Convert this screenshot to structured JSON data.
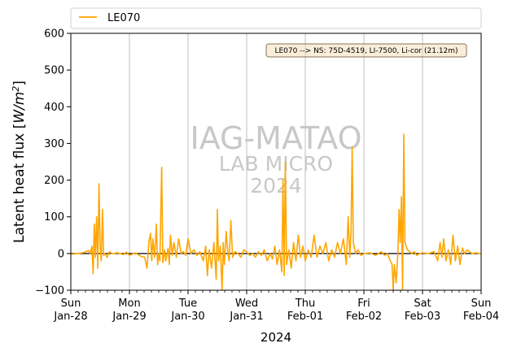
{
  "chart_data": {
    "type": "line",
    "title": "",
    "xlabel": "2024",
    "ylabel": "Latent heat flux [W/m²]",
    "ylabel_main": "Latent heat flux [",
    "ylabel_unit_w": "W/m",
    "ylabel_unit_exp": "2",
    "ylabel_close": "]",
    "ylim": [
      -100,
      600
    ],
    "y_ticks": [
      -100,
      0,
      100,
      200,
      300,
      400,
      500,
      600
    ],
    "x_range_days": [
      0,
      7
    ],
    "x_ticks": [
      {
        "day": 0,
        "line1": "Sun",
        "line2": "Jan-28"
      },
      {
        "day": 1,
        "line1": "Mon",
        "line2": "Jan-29"
      },
      {
        "day": 2,
        "line1": "Tue",
        "line2": "Jan-30"
      },
      {
        "day": 3,
        "line1": "Wed",
        "line2": "Jan-31"
      },
      {
        "day": 4,
        "line1": "Thu",
        "line2": "Feb-01"
      },
      {
        "day": 5,
        "line1": "Fri",
        "line2": "Feb-02"
      },
      {
        "day": 6,
        "line1": "Sat",
        "line2": "Feb-03"
      },
      {
        "day": 7,
        "line1": "Sun",
        "line2": "Feb-04"
      }
    ],
    "grid": "vertical-major",
    "zero_line": true,
    "legend_placement": "top",
    "annotation": "LE070 --> NS: 75D-4519, LI-7500, Li-cor (21.12m)",
    "watermark": {
      "line1": "IAG-MATAO",
      "line2": "LAB MICRO",
      "line3": "2024"
    },
    "series": [
      {
        "name": "LE070",
        "color": "#ffa500",
        "points": [
          [
            0.0,
            -2
          ],
          [
            0.1,
            0
          ],
          [
            0.2,
            2
          ],
          [
            0.26,
            5
          ],
          [
            0.3,
            8
          ],
          [
            0.33,
            0
          ],
          [
            0.36,
            20
          ],
          [
            0.38,
            -55
          ],
          [
            0.4,
            80
          ],
          [
            0.42,
            -10
          ],
          [
            0.44,
            100
          ],
          [
            0.46,
            -40
          ],
          [
            0.48,
            190
          ],
          [
            0.5,
            20
          ],
          [
            0.52,
            -20
          ],
          [
            0.54,
            120
          ],
          [
            0.56,
            -5
          ],
          [
            0.58,
            0
          ],
          [
            0.62,
            -10
          ],
          [
            0.66,
            5
          ],
          [
            0.7,
            0
          ],
          [
            0.8,
            2
          ],
          [
            0.9,
            -3
          ],
          [
            0.95,
            4
          ],
          [
            1.0,
            -5
          ],
          [
            1.1,
            2
          ],
          [
            1.2,
            -8
          ],
          [
            1.26,
            -10
          ],
          [
            1.3,
            -40
          ],
          [
            1.33,
            30
          ],
          [
            1.36,
            55
          ],
          [
            1.38,
            -20
          ],
          [
            1.4,
            40
          ],
          [
            1.43,
            -10
          ],
          [
            1.46,
            80
          ],
          [
            1.48,
            -30
          ],
          [
            1.5,
            0
          ],
          [
            1.52,
            -20
          ],
          [
            1.55,
            235
          ],
          [
            1.57,
            -25
          ],
          [
            1.6,
            10
          ],
          [
            1.62,
            -20
          ],
          [
            1.66,
            15
          ],
          [
            1.68,
            -30
          ],
          [
            1.7,
            50
          ],
          [
            1.73,
            -5
          ],
          [
            1.76,
            30
          ],
          [
            1.8,
            -10
          ],
          [
            1.84,
            40
          ],
          [
            1.88,
            0
          ],
          [
            1.92,
            5
          ],
          [
            1.96,
            -5
          ],
          [
            2.0,
            40
          ],
          [
            2.05,
            0
          ],
          [
            2.1,
            10
          ],
          [
            2.15,
            -5
          ],
          [
            2.2,
            5
          ],
          [
            2.26,
            -20
          ],
          [
            2.3,
            20
          ],
          [
            2.33,
            -60
          ],
          [
            2.36,
            10
          ],
          [
            2.4,
            -40
          ],
          [
            2.44,
            30
          ],
          [
            2.48,
            -70
          ],
          [
            2.5,
            120
          ],
          [
            2.52,
            -20
          ],
          [
            2.55,
            20
          ],
          [
            2.58,
            -100
          ],
          [
            2.6,
            30
          ],
          [
            2.62,
            -30
          ],
          [
            2.65,
            60
          ],
          [
            2.68,
            0
          ],
          [
            2.7,
            -20
          ],
          [
            2.73,
            90
          ],
          [
            2.76,
            -10
          ],
          [
            2.8,
            5
          ],
          [
            2.85,
            0
          ],
          [
            2.9,
            -10
          ],
          [
            2.95,
            10
          ],
          [
            3.0,
            5
          ],
          [
            3.05,
            -5
          ],
          [
            3.1,
            0
          ],
          [
            3.15,
            -10
          ],
          [
            3.2,
            5
          ],
          [
            3.25,
            -5
          ],
          [
            3.3,
            10
          ],
          [
            3.35,
            -20
          ],
          [
            3.4,
            0
          ],
          [
            3.44,
            -15
          ],
          [
            3.48,
            20
          ],
          [
            3.52,
            -30
          ],
          [
            3.56,
            10
          ],
          [
            3.6,
            -50
          ],
          [
            3.62,
            200
          ],
          [
            3.64,
            -60
          ],
          [
            3.66,
            250
          ],
          [
            3.68,
            -30
          ],
          [
            3.72,
            10
          ],
          [
            3.76,
            -40
          ],
          [
            3.8,
            30
          ],
          [
            3.84,
            -20
          ],
          [
            3.88,
            50
          ],
          [
            3.92,
            -10
          ],
          [
            3.96,
            20
          ],
          [
            4.0,
            -20
          ],
          [
            4.05,
            10
          ],
          [
            4.1,
            -10
          ],
          [
            4.15,
            50
          ],
          [
            4.2,
            -10
          ],
          [
            4.25,
            20
          ],
          [
            4.3,
            0
          ],
          [
            4.35,
            30
          ],
          [
            4.4,
            -20
          ],
          [
            4.45,
            10
          ],
          [
            4.5,
            -10
          ],
          [
            4.55,
            30
          ],
          [
            4.6,
            0
          ],
          [
            4.65,
            40
          ],
          [
            4.7,
            -30
          ],
          [
            4.73,
            100
          ],
          [
            4.76,
            -10
          ],
          [
            4.78,
            60
          ],
          [
            4.8,
            290
          ],
          [
            4.82,
            30
          ],
          [
            4.86,
            0
          ],
          [
            4.9,
            10
          ],
          [
            4.95,
            -5
          ],
          [
            5.0,
            0
          ],
          [
            5.1,
            2
          ],
          [
            5.2,
            -5
          ],
          [
            5.3,
            5
          ],
          [
            5.35,
            -5
          ],
          [
            5.4,
            0
          ],
          [
            5.45,
            -20
          ],
          [
            5.48,
            -30
          ],
          [
            5.5,
            -100
          ],
          [
            5.52,
            -30
          ],
          [
            5.55,
            -80
          ],
          [
            5.58,
            5
          ],
          [
            5.6,
            120
          ],
          [
            5.62,
            30
          ],
          [
            5.64,
            155
          ],
          [
            5.66,
            -100
          ],
          [
            5.68,
            325
          ],
          [
            5.7,
            30
          ],
          [
            5.74,
            10
          ],
          [
            5.78,
            5
          ],
          [
            5.82,
            0
          ],
          [
            5.86,
            5
          ],
          [
            5.9,
            -5
          ],
          [
            5.95,
            0
          ],
          [
            6.0,
            2
          ],
          [
            6.1,
            0
          ],
          [
            6.2,
            5
          ],
          [
            6.26,
            -20
          ],
          [
            6.3,
            30
          ],
          [
            6.33,
            -10
          ],
          [
            6.36,
            40
          ],
          [
            6.4,
            -20
          ],
          [
            6.44,
            10
          ],
          [
            6.48,
            -30
          ],
          [
            6.52,
            50
          ],
          [
            6.56,
            -20
          ],
          [
            6.6,
            20
          ],
          [
            6.64,
            -30
          ],
          [
            6.68,
            15
          ],
          [
            6.72,
            0
          ],
          [
            6.76,
            10
          ],
          [
            6.8,
            5
          ],
          [
            6.85,
            0
          ],
          [
            6.9,
            2
          ],
          [
            7.0,
            0
          ]
        ]
      }
    ]
  }
}
